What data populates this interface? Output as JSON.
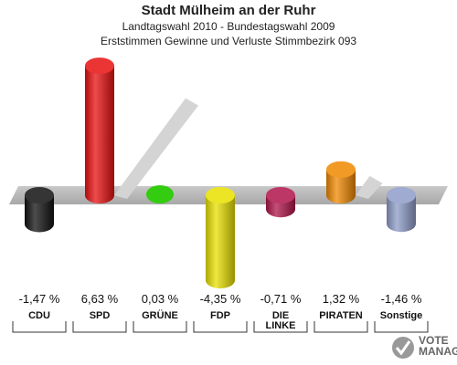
{
  "chart_data": {
    "type": "bar",
    "title": "Stadt Mülheim an der Ruhr",
    "subtitle": "Landtagswahl 2010 - Bundestagswahl 2009",
    "subtitle2": "Erststimmen Gewinne und Verluste Stimmbezirk 093",
    "categories": [
      "CDU",
      "SPD",
      "GRÜNE",
      "FDP",
      "DIE LINKE",
      "PIRATEN",
      "Sonstige"
    ],
    "values": [
      -1.47,
      6.63,
      0.03,
      -4.35,
      -0.71,
      1.32,
      -1.46
    ],
    "value_labels": [
      "-1,47 %",
      "6,63 %",
      "0,03 %",
      "-4,35 %",
      "-0,71 %",
      "1,32 %",
      "-1,46 %"
    ],
    "colors": [
      "#111111",
      "#e81010",
      "#33cc11",
      "#e8e000",
      "#b0144a",
      "#f08800",
      "#8e9cc8"
    ]
  },
  "logo": {
    "line1": "VOTE",
    "line2": "MANAGER"
  }
}
